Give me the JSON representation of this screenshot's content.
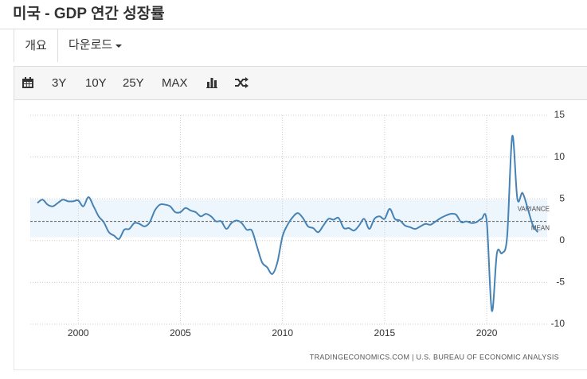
{
  "header": {
    "title": "미국 - GDP 연간 성장률"
  },
  "tabs": [
    "개요",
    "다운로드"
  ],
  "toolbar": [
    "3Y",
    "10Y",
    "25Y",
    "MAX"
  ],
  "chart_data": {
    "type": "line",
    "source": "TRADINGECONOMICS.COM  |  U.S. BUREAU OF ECONOMIC ANALYSIS",
    "xlim": [
      1997.65,
      2022.96
    ],
    "xticks": [
      2000,
      2005,
      2010,
      2015,
      2020
    ],
    "ylim": [
      -10,
      15
    ],
    "yticks": [
      -10,
      -5,
      0,
      5,
      10,
      15
    ],
    "grid": true,
    "mean_line": {
      "label": "MEAN",
      "value": 2.3
    },
    "variance_band": {
      "label": "VARIANCE",
      "low": 0.4,
      "high": 4.9
    },
    "x": [
      1998,
      1998.25,
      1998.5,
      1998.75,
      1999,
      1999.25,
      1999.5,
      1999.75,
      2000,
      2000.25,
      2000.5,
      2000.75,
      2001,
      2001.25,
      2001.5,
      2001.75,
      2002,
      2002.25,
      2002.5,
      2002.75,
      2003,
      2003.25,
      2003.5,
      2003.75,
      2004,
      2004.25,
      2004.5,
      2004.75,
      2005,
      2005.25,
      2005.5,
      2005.75,
      2006,
      2006.25,
      2006.5,
      2006.75,
      2007,
      2007.25,
      2007.5,
      2007.75,
      2008,
      2008.25,
      2008.5,
      2008.75,
      2009,
      2009.25,
      2009.5,
      2009.75,
      2010,
      2010.25,
      2010.5,
      2010.75,
      2011,
      2011.25,
      2011.5,
      2011.75,
      2012,
      2012.25,
      2012.5,
      2012.75,
      2013,
      2013.25,
      2013.5,
      2013.75,
      2014,
      2014.25,
      2014.5,
      2014.75,
      2015,
      2015.25,
      2015.5,
      2015.75,
      2016,
      2016.25,
      2016.5,
      2016.75,
      2017,
      2017.25,
      2017.5,
      2017.75,
      2018,
      2018.25,
      2018.5,
      2018.75,
      2019,
      2019.25,
      2019.5,
      2019.75,
      2020,
      2020.25,
      2020.5,
      2020.75,
      2021,
      2021.25,
      2021.5,
      2021.75,
      2022,
      2022.25,
      2022.5
    ],
    "series": [
      {
        "color": "#4682b4",
        "values": [
          4.5,
          4.9,
          4.3,
          4.1,
          4.5,
          4.9,
          4.7,
          4.7,
          4.8,
          4.1,
          5.2,
          4.1,
          2.9,
          2.2,
          1.0,
          0.6,
          0.2,
          1.3,
          1.4,
          2.1,
          2.0,
          1.7,
          2.2,
          3.6,
          4.3,
          4.3,
          4.1,
          3.4,
          3.4,
          3.9,
          3.6,
          3.4,
          2.9,
          3.2,
          2.9,
          2.3,
          2.3,
          1.4,
          2.1,
          2.4,
          2.1,
          1.3,
          1.2,
          -0.7,
          -2.6,
          -3.2,
          -4.0,
          -2.6,
          0.5,
          1.9,
          2.8,
          3.3,
          2.7,
          1.7,
          1.5,
          1.0,
          1.8,
          2.6,
          2.5,
          2.7,
          1.5,
          1.5,
          1.2,
          1.8,
          2.6,
          1.4,
          2.6,
          2.9,
          2.6,
          3.8,
          2.6,
          2.4,
          1.8,
          1.6,
          1.4,
          1.7,
          2.0,
          1.9,
          2.3,
          2.7,
          3.0,
          3.2,
          3.1,
          2.2,
          2.3,
          2.1,
          2.2,
          2.6,
          2.3,
          -8.4,
          -1.5,
          -1.5,
          0.5,
          12.5,
          5.0,
          5.7,
          3.9,
          1.9,
          1.0
        ]
      }
    ]
  }
}
